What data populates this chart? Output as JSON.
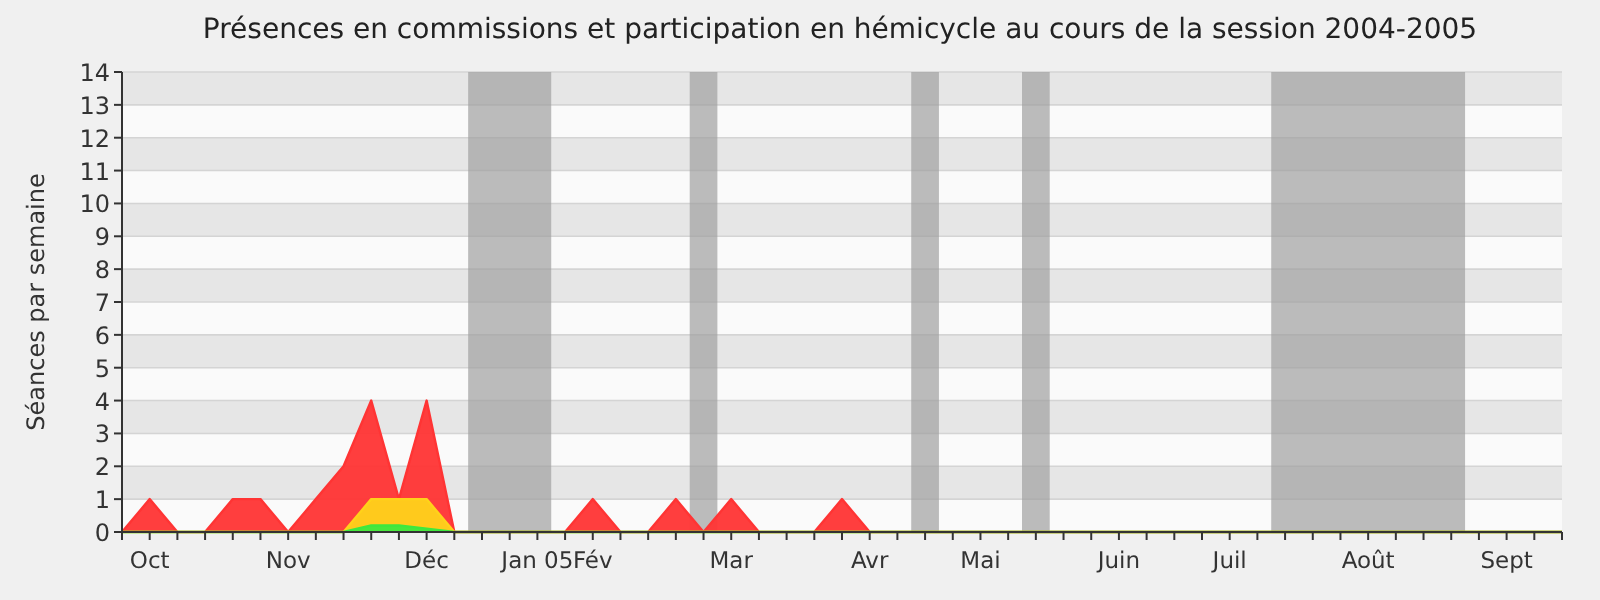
{
  "chart_data": {
    "type": "area",
    "title": "Présences en commissions et participation en hémicycle au cours de la session 2004-2005",
    "ylabel": "Séances par semaine",
    "categories": [
      null,
      "Oct",
      null,
      null,
      null,
      null,
      "Nov",
      null,
      null,
      null,
      null,
      "Déc",
      null,
      null,
      null,
      "Jan 05",
      null,
      "Fév",
      null,
      null,
      null,
      null,
      "Mar",
      null,
      null,
      null,
      null,
      "Avr",
      null,
      null,
      null,
      "Mai",
      null,
      null,
      null,
      null,
      "Juin",
      null,
      null,
      null,
      "Juil",
      null,
      null,
      null,
      null,
      "Août",
      null,
      null,
      null,
      null,
      "Sept",
      null,
      null
    ],
    "series": [
      {
        "color": "#ff3434",
        "values": [
          0,
          1,
          0,
          0,
          1,
          1,
          0,
          1,
          2,
          4,
          1,
          4,
          0,
          0,
          0,
          0,
          0,
          1,
          0,
          0,
          1,
          0,
          1,
          0,
          0,
          0,
          1,
          0,
          0,
          0,
          0,
          0,
          0,
          0,
          0,
          0,
          0,
          0,
          0,
          0,
          0,
          0,
          0,
          0,
          0,
          0,
          0,
          0,
          0,
          0,
          0,
          0,
          0
        ]
      },
      {
        "color": "#ffd21a",
        "values": [
          0,
          0,
          0,
          0,
          0,
          0,
          0,
          0,
          0,
          1,
          1,
          1,
          0,
          0,
          0,
          0,
          0,
          0,
          0,
          0,
          0,
          0,
          0,
          0,
          0,
          0,
          0,
          0,
          0,
          0,
          0,
          0,
          0,
          0,
          0,
          0,
          0,
          0,
          0,
          0,
          0,
          0,
          0,
          0,
          0,
          0,
          0,
          0,
          0,
          0,
          0,
          0,
          0
        ]
      },
      {
        "color": "#3ee83e",
        "values": [
          0,
          0,
          0,
          0,
          0,
          0,
          0,
          0,
          0,
          0.2,
          0.2,
          0.1,
          0,
          0,
          0,
          0,
          0,
          0,
          0,
          0,
          0,
          0,
          0,
          0,
          0,
          0,
          0,
          0,
          0,
          0,
          0,
          0,
          0,
          0,
          0,
          0,
          0,
          0,
          0,
          0,
          0,
          0,
          0,
          0,
          0,
          0,
          0,
          0,
          0,
          0,
          0,
          0,
          0
        ]
      }
    ],
    "ylim": [
      0,
      14
    ],
    "yticks": [
      0,
      1,
      2,
      3,
      4,
      5,
      6,
      7,
      8,
      9,
      10,
      11,
      12,
      13,
      14
    ],
    "grid": "y"
  }
}
